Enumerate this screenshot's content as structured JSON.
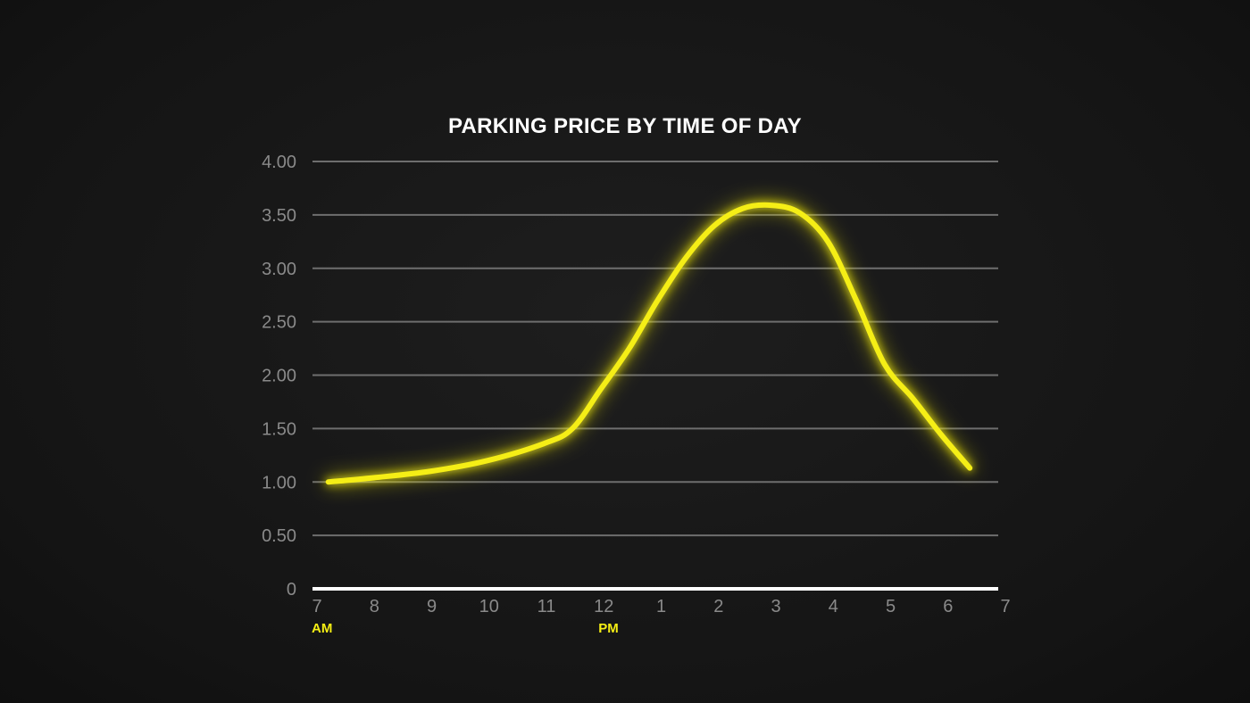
{
  "chart_data": {
    "type": "line",
    "title": "PARKING PRICE BY TIME OF DAY",
    "xlabel": "",
    "ylabel": "",
    "x_ticks": [
      "7",
      "8",
      "9",
      "10",
      "11",
      "12",
      "1",
      "2",
      "3",
      "4",
      "5",
      "6",
      "7"
    ],
    "x_period_labels": [
      {
        "label": "AM",
        "at_tick": 0
      },
      {
        "label": "PM",
        "at_tick": 5
      }
    ],
    "y_ticks": [
      "0",
      "0.50",
      "1.00",
      "1.50",
      "2.00",
      "2.50",
      "3.00",
      "3.50",
      "4.00"
    ],
    "ylim": [
      0,
      4
    ],
    "xlim": [
      7,
      19
    ],
    "grid": true,
    "series": [
      {
        "color": "#f5ee14",
        "x": [
          7.2,
          8.0,
          9.0,
          10.0,
          11.0,
          11.5,
          12.0,
          12.5,
          13.0,
          13.5,
          14.0,
          14.5,
          15.0,
          15.5,
          16.0,
          16.5,
          17.0,
          17.5,
          18.0,
          18.5
        ],
        "y": [
          1.0,
          1.04,
          1.1,
          1.2,
          1.36,
          1.5,
          1.87,
          2.25,
          2.7,
          3.1,
          3.4,
          3.56,
          3.59,
          3.52,
          3.25,
          2.7,
          2.1,
          1.78,
          1.44,
          1.13
        ]
      }
    ]
  },
  "colors": {
    "background": "#161616",
    "grid": "#6e6e6e",
    "axis": "#ffffff",
    "tick_label": "#8a8a8a",
    "period_label": "#f5ee14",
    "title": "#ffffff"
  }
}
